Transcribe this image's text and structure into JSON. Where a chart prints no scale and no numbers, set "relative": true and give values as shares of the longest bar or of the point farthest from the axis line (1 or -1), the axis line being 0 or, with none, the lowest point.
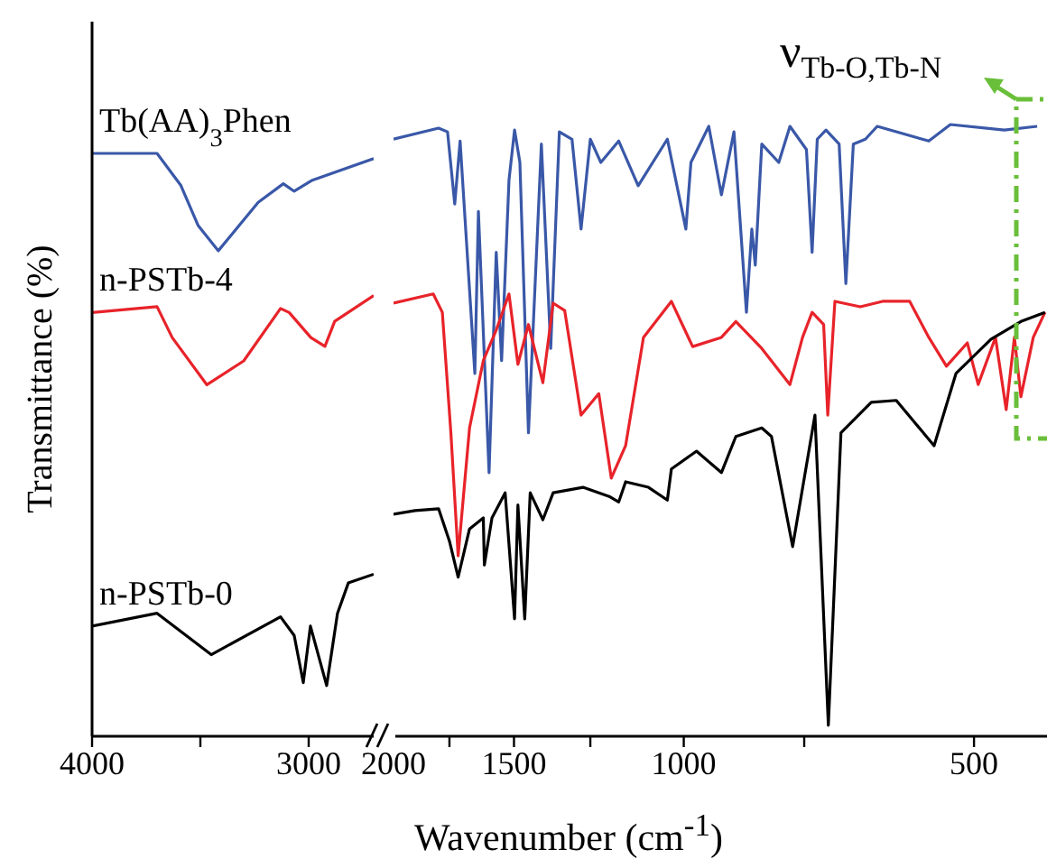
{
  "chart_data": [
    {
      "type": "line",
      "ylabel": "Transmittance (%)",
      "relative": true,
      "xlim": [
        4000,
        2700
      ],
      "xticks": [
        4000,
        {
          "value": 3500,
          "label": null
        },
        3000
      ],
      "tick_labels": "x",
      "legend": false,
      "grid": false,
      "marker": "none",
      "series": [
        {
          "name": "Tb(AA)$_{3}$Phen",
          "color": "#3a58a8",
          "x": [
            4000,
            3700,
            3590,
            3510,
            3417,
            3233,
            3117,
            3067,
            2983,
            2700
          ],
          "values": [
            1.0,
            1.0,
            0.945,
            0.876,
            0.833,
            0.916,
            0.948,
            0.935,
            0.954,
            0.991
          ]
        },
        {
          "name": "n-PSTb-4",
          "color": "#e8232a",
          "x": [
            4000,
            3700,
            3630,
            3470,
            3300,
            3130,
            3090,
            2990,
            2925,
            2880,
            2700
          ],
          "values": [
            0.727,
            0.737,
            0.684,
            0.603,
            0.644,
            0.734,
            0.727,
            0.684,
            0.669,
            0.712,
            0.756
          ]
        },
        {
          "name": "n-PSTb-0",
          "color": "#000000",
          "x": [
            4000,
            3700,
            3450,
            3130,
            3067,
            3025,
            2992,
            2917,
            2867,
            2817,
            2700
          ],
          "values": [
            0.189,
            0.211,
            0.14,
            0.205,
            0.173,
            0.092,
            0.189,
            0.087,
            0.211,
            0.263,
            0.278
          ]
        }
      ]
    },
    {
      "type": "line",
      "xlabel": "Wavenumber (cm$^{-1}$)",
      "relative": true,
      "log": "x",
      "xlim": [
        2000,
        420
      ],
      "xticks": [
        2000,
        {
          "value": 1750,
          "label": null
        },
        1500,
        {
          "value": 1250,
          "label": null
        },
        1000,
        {
          "value": 750,
          "label": null
        },
        500
      ],
      "tick_labels": "x",
      "legend": false,
      "grid": false,
      "marker": "none",
      "annotations": [
        "ν$_{Tb-O,Tb-N}$"
      ],
      "series": [
        {
          "color": "#3a58a8",
          "x": [
            2000,
            1796,
            1758,
            1728,
            1706,
            1647,
            1633,
            1592,
            1565,
            1545,
            1518,
            1498,
            1479,
            1449,
            1405,
            1374,
            1346,
            1306,
            1278,
            1250,
            1219,
            1168,
            1115,
            1040,
            995,
            983,
            942,
            914,
            887,
            861,
            850,
            843,
            830,
            797,
            776,
            746,
            736,
            727,
            712,
            690,
            679,
            667,
            648,
            630,
            557,
            529,
            465,
            430
          ],
          "values": [
            0.976,
            0.994,
            0.988,
            0.87,
            0.973,
            0.593,
            0.858,
            0.431,
            0.791,
            0.614,
            0.909,
            0.991,
            0.938,
            0.496,
            0.968,
            0.634,
            0.988,
            0.976,
            0.829,
            0.976,
            0.938,
            0.973,
            0.9,
            0.976,
            0.829,
            0.938,
            0.997,
            0.885,
            0.988,
            0.693,
            0.829,
            0.77,
            0.968,
            0.938,
            0.997,
            0.959,
            0.791,
            0.976,
            0.991,
            0.968,
            0.74,
            0.968,
            0.976,
            0.997,
            0.973,
            1.0,
            0.991,
            0.997
          ]
        },
        {
          "color": "#e8232a",
          "x": [
            2000,
            1819,
            1780,
            1744,
            1714,
            1668,
            1614,
            1565,
            1518,
            1486,
            1449,
            1400,
            1366,
            1329,
            1278,
            1225,
            1189,
            1149,
            1101,
            1030,
            979,
            914,
            883,
            830,
            776,
            753,
            736,
            716,
            709,
            697,
            656,
            622,
            583,
            557,
            534,
            508,
            495,
            475,
            463,
            454,
            447,
            434,
            422
          ],
          "values": [
            0.708,
            0.723,
            0.693,
            0.496,
            0.295,
            0.504,
            0.614,
            0.664,
            0.723,
            0.608,
            0.673,
            0.578,
            0.708,
            0.696,
            0.525,
            0.56,
            0.422,
            0.475,
            0.652,
            0.711,
            0.637,
            0.652,
            0.678,
            0.634,
            0.575,
            0.652,
            0.693,
            0.673,
            0.525,
            0.711,
            0.702,
            0.711,
            0.711,
            0.652,
            0.605,
            0.643,
            0.575,
            0.652,
            0.534,
            0.652,
            0.555,
            0.652,
            0.693
          ]
        },
        {
          "color": "#000000",
          "x": [
            2000,
            1900,
            1796,
            1750,
            1714,
            1668,
            1614,
            1610,
            1581,
            1532,
            1498,
            1486,
            1462,
            1443,
            1400,
            1366,
            1272,
            1195,
            1168,
            1149,
            1088,
            1040,
            1030,
            970,
            914,
            883,
            830,
            811,
            771,
            731,
            708,
            687,
            639,
            602,
            550,
            522,
            480,
            447,
            422
          ],
          "values": [
            0.363,
            0.369,
            0.372,
            0.319,
            0.26,
            0.339,
            0.357,
            0.28,
            0.357,
            0.398,
            0.192,
            0.378,
            0.192,
            0.398,
            0.354,
            0.398,
            0.407,
            0.392,
            0.383,
            0.416,
            0.407,
            0.386,
            0.437,
            0.466,
            0.431,
            0.49,
            0.504,
            0.49,
            0.31,
            0.525,
            0.018,
            0.496,
            0.546,
            0.549,
            0.475,
            0.593,
            0.649,
            0.678,
            0.693
          ]
        }
      ]
    }
  ]
}
